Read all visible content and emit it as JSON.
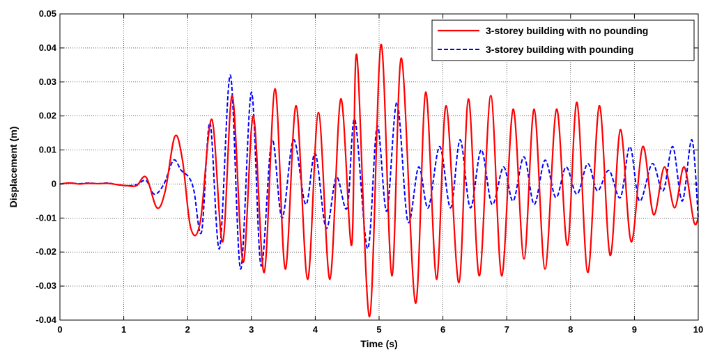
{
  "chart_data": {
    "type": "line",
    "title": "",
    "xlabel": "Time (s)",
    "ylabel": "Displacement (m)",
    "xlim": [
      0,
      10
    ],
    "ylim": [
      -0.04,
      0.05
    ],
    "xticks": [
      "0",
      "1",
      "2",
      "3",
      "4",
      "5",
      "6",
      "7",
      "8",
      "9",
      "10"
    ],
    "yticks": [
      "-0.04",
      "-0.03",
      "-0.02",
      "-0.01",
      "0",
      "0.01",
      "0.02",
      "0.03",
      "0.04",
      "0.05"
    ],
    "grid": true,
    "legend_position": "top-right",
    "series": [
      {
        "name": "3-storey building with no pounding",
        "color": "#ff0000",
        "style": "solid",
        "x": [
          0,
          0.15,
          0.3,
          0.45,
          0.6,
          0.75,
          0.9,
          1.05,
          1.2,
          1.35,
          1.52,
          1.65,
          1.8,
          1.92,
          2.05,
          2.2,
          2.38,
          2.55,
          2.7,
          2.87,
          3.03,
          3.2,
          3.37,
          3.53,
          3.7,
          3.88,
          4.05,
          4.23,
          4.4,
          4.57,
          4.65,
          4.85,
          5.03,
          5.2,
          5.35,
          5.57,
          5.73,
          5.9,
          6.05,
          6.25,
          6.4,
          6.57,
          6.75,
          6.92,
          7.1,
          7.27,
          7.43,
          7.6,
          7.78,
          7.95,
          8.1,
          8.27,
          8.45,
          8.62,
          8.78,
          8.95,
          9.13,
          9.3,
          9.47,
          9.63,
          9.78,
          9.93,
          10.0
        ],
        "y": [
          0,
          0.0003,
          0,
          0.0002,
          0.0001,
          0.0002,
          -0.0002,
          -0.0005,
          -0.0005,
          0.002,
          -0.007,
          -0.002,
          0.014,
          0.007,
          -0.013,
          -0.011,
          0.019,
          -0.017,
          0.026,
          -0.023,
          0.02,
          -0.026,
          0.028,
          -0.025,
          0.023,
          -0.028,
          0.021,
          -0.028,
          0.025,
          -0.018,
          0.038,
          -0.039,
          0.041,
          -0.027,
          0.037,
          -0.035,
          0.027,
          -0.028,
          0.023,
          -0.029,
          0.025,
          -0.027,
          0.026,
          -0.027,
          0.022,
          -0.022,
          0.022,
          -0.025,
          0.022,
          -0.018,
          0.024,
          -0.026,
          0.023,
          -0.021,
          0.016,
          -0.017,
          0.011,
          -0.009,
          0.005,
          -0.007,
          0.005,
          -0.011,
          -0.01
        ]
      },
      {
        "name": "3-storey building with pounding",
        "color": "#0000ff",
        "style": "dashed",
        "x": [
          0,
          0.15,
          0.3,
          0.45,
          0.6,
          0.75,
          0.9,
          1.05,
          1.2,
          1.35,
          1.48,
          1.63,
          1.78,
          1.9,
          2.02,
          2.1,
          2.22,
          2.35,
          2.5,
          2.67,
          2.83,
          3.0,
          3.15,
          3.32,
          3.48,
          3.66,
          3.85,
          4.0,
          4.17,
          4.33,
          4.5,
          4.62,
          4.82,
          4.97,
          5.12,
          5.28,
          5.45,
          5.62,
          5.77,
          5.95,
          6.12,
          6.27,
          6.43,
          6.6,
          6.77,
          6.95,
          7.1,
          7.27,
          7.43,
          7.6,
          7.77,
          7.93,
          8.1,
          8.27,
          8.42,
          8.6,
          8.78,
          8.93,
          9.08,
          9.28,
          9.45,
          9.6,
          9.75,
          9.9,
          10.0
        ],
        "y": [
          0,
          0.0003,
          0.0001,
          0.0003,
          0.0001,
          0.0003,
          -0.0002,
          -0.0005,
          -0.0002,
          0.001,
          -0.003,
          0.0,
          0.007,
          0.004,
          0.002,
          -0.002,
          -0.014,
          0.018,
          -0.019,
          0.032,
          -0.025,
          0.027,
          -0.024,
          0.013,
          -0.01,
          0.013,
          -0.006,
          0.009,
          -0.013,
          0.002,
          -0.007,
          0.019,
          -0.019,
          0.017,
          -0.008,
          0.024,
          -0.011,
          0.005,
          -0.007,
          0.011,
          -0.007,
          0.013,
          -0.007,
          0.01,
          -0.006,
          0.005,
          -0.005,
          0.008,
          -0.006,
          0.007,
          -0.004,
          0.005,
          -0.003,
          0.006,
          -0.002,
          0.004,
          -0.004,
          0.011,
          -0.005,
          0.006,
          -0.002,
          0.011,
          -0.005,
          0.013,
          -0.01
        ]
      }
    ]
  }
}
